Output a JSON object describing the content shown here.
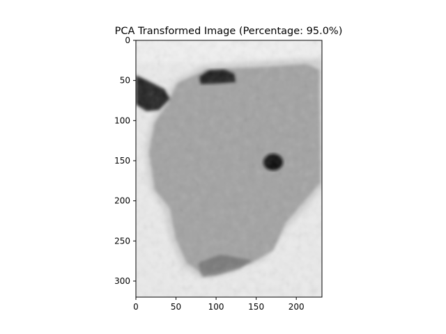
{
  "title": "PCA Transformed Image (Percentage: 95.0%)",
  "axes": {
    "x_ticks": [
      0,
      50,
      100,
      150,
      200
    ],
    "y_ticks": [
      0,
      50,
      100,
      150,
      200,
      250,
      300
    ],
    "x_range": [
      0,
      232
    ],
    "y_range": [
      0,
      320
    ]
  },
  "image": {
    "colormap": "grayscale",
    "background_tone": "#e6e6e6",
    "blob_tone": "#a4a4a4",
    "dark_tone": "#1e1e1e"
  }
}
